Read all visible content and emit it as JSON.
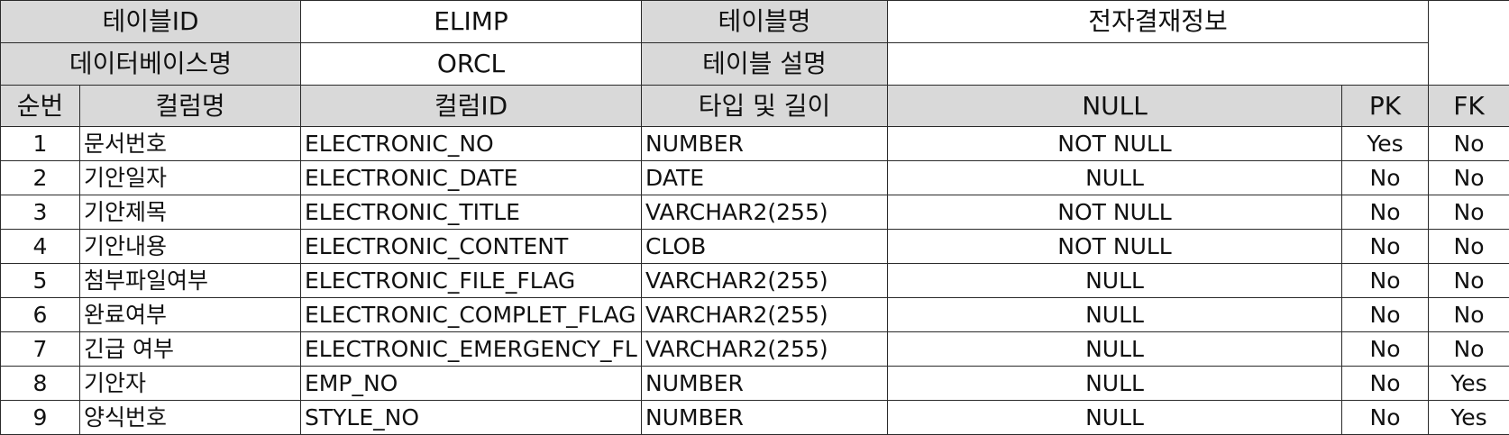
{
  "meta": {
    "table_id_label": "테이블ID",
    "table_id_value": "ELIMP",
    "table_name_label": "테이블명",
    "table_name_value": "전자결재정보",
    "db_name_label": "데이터베이스명",
    "db_name_value": "ORCL",
    "table_desc_label": "테이블 설명",
    "table_desc_value": ""
  },
  "columns_header": {
    "seq": "순번",
    "col_name": "컬럼명",
    "col_id": "컬럼ID",
    "type_len": "타입 및 길이",
    "null": "NULL",
    "pk": "PK",
    "fk": "FK"
  },
  "rows": [
    {
      "seq": "1",
      "name": "문서번호",
      "id": "ELECTRONIC_NO",
      "type": "NUMBER",
      "null": "NOT NULL",
      "pk": "Yes",
      "fk": "No"
    },
    {
      "seq": "2",
      "name": "기안일자",
      "id": "ELECTRONIC_DATE",
      "type": "DATE",
      "null": "NULL",
      "pk": "No",
      "fk": "No"
    },
    {
      "seq": "3",
      "name": "기안제목",
      "id": "ELECTRONIC_TITLE",
      "type": "VARCHAR2(255)",
      "null": "NOT NULL",
      "pk": "No",
      "fk": "No"
    },
    {
      "seq": "4",
      "name": "기안내용",
      "id": "ELECTRONIC_CONTENT",
      "type": "CLOB",
      "null": "NOT NULL",
      "pk": "No",
      "fk": "No"
    },
    {
      "seq": "5",
      "name": "첨부파일여부",
      "id": "ELECTRONIC_FILE_FLAG",
      "type": "VARCHAR2(255)",
      "null": "NULL",
      "pk": "No",
      "fk": "No"
    },
    {
      "seq": "6",
      "name": "완료여부",
      "id": "ELECTRONIC_COMPLET_FLAG",
      "type": "VARCHAR2(255)",
      "null": "NULL",
      "pk": "No",
      "fk": "No"
    },
    {
      "seq": "7",
      "name": "긴급 여부",
      "id": "ELECTRONIC_EMERGENCY_FL",
      "type": "VARCHAR2(255)",
      "null": "NULL",
      "pk": "No",
      "fk": "No"
    },
    {
      "seq": "8",
      "name": "기안자",
      "id": "EMP_NO",
      "type": "NUMBER",
      "null": "NULL",
      "pk": "No",
      "fk": "Yes"
    },
    {
      "seq": "9",
      "name": "양식번호",
      "id": "STYLE_NO",
      "type": "NUMBER",
      "null": "NULL",
      "pk": "No",
      "fk": "Yes"
    }
  ]
}
